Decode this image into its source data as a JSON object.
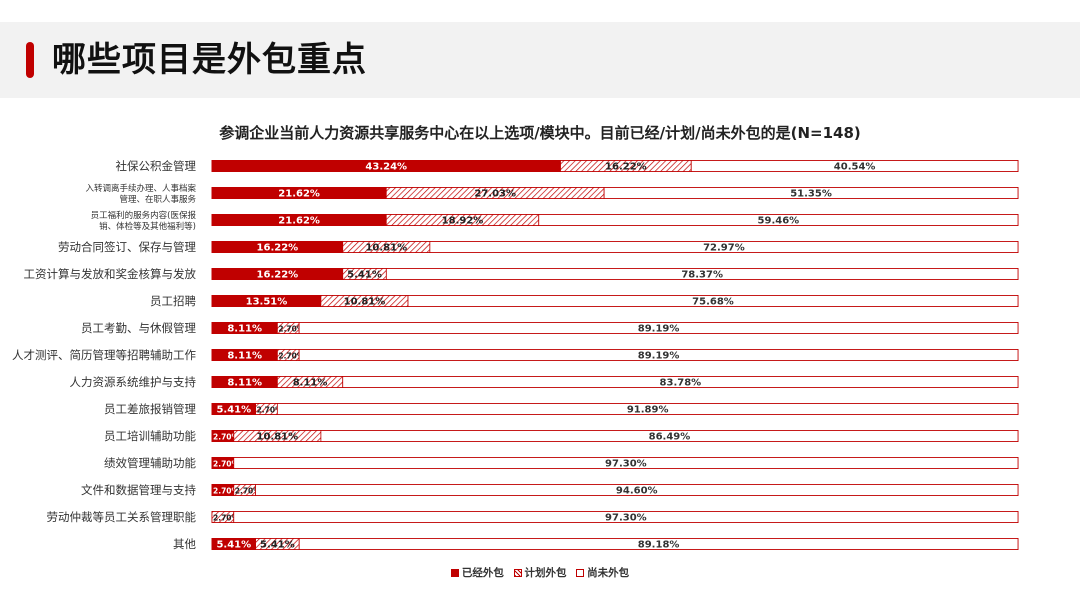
{
  "page": {
    "title": "哪些项目是外包重点"
  },
  "chart_data": {
    "type": "bar",
    "orientation": "horizontal",
    "stacked": true,
    "normalized_percent": true,
    "title": "参调企业当前人力资源共享服务中心在以上选项/模块中。目前已经/计划/尚未外包的是(N=148)",
    "xlim": [
      0,
      100
    ],
    "categories": [
      "社保公积金管理",
      "入转调离手续办理、人事档案\n管理、在职人事服务",
      "员工福利的服务内容(医保报\n销、体检等及其他福利等)",
      "劳动合同签订、保存与管理",
      "工资计算与发放和奖金核算与发放",
      "员工招聘",
      "员工考勤、与休假管理",
      "人才测评、简历管理等招聘辅助工作",
      "人力资源系统维护与支持",
      "员工差旅报销管理",
      "员工培训辅助功能",
      "绩效管理辅助功能",
      "文件和数据管理与支持",
      "劳动仲裁等员工关系管理职能",
      "其他"
    ],
    "series": [
      {
        "name": "已经外包",
        "colors": {
          "fill": "#c00000"
        },
        "values": [
          43.24,
          21.62,
          21.62,
          16.22,
          16.22,
          13.51,
          8.11,
          8.11,
          8.11,
          5.41,
          2.7,
          2.7,
          2.7,
          0.0,
          5.41
        ],
        "labels": [
          "43.24%",
          "21.62%",
          "21.62%",
          "16.22%",
          "16.22%",
          "13.51%",
          "8.11%",
          "8.11%",
          "8.11%",
          "5.41%",
          "2.70%",
          "2.70%",
          "2.70%",
          "",
          "5.41%"
        ]
      },
      {
        "name": "计划外包",
        "colors": {
          "fill": "hatch"
        },
        "values": [
          16.22,
          27.03,
          18.92,
          10.81,
          5.41,
          10.81,
          2.7,
          2.7,
          8.11,
          2.7,
          10.81,
          0.0,
          2.7,
          2.7,
          5.41
        ],
        "labels": [
          "16.22%",
          "27.03%",
          "18.92%",
          "10.81%",
          "5.41%",
          "10.81%",
          "2.70%",
          "2.70%",
          "8.11%",
          "2.70%",
          "10.81%",
          "",
          "2.70%",
          "2.70%",
          "5.41%"
        ]
      },
      {
        "name": "尚未外包",
        "colors": {
          "fill": "#ffffff"
        },
        "values": [
          40.54,
          51.35,
          59.46,
          72.97,
          78.37,
          75.68,
          89.19,
          89.19,
          83.78,
          91.89,
          86.49,
          97.3,
          94.6,
          97.3,
          89.18
        ],
        "labels": [
          "40.54%",
          "51.35%",
          "59.46%",
          "72.97%",
          "78.37%",
          "75.68%",
          "89.19%",
          "89.19%",
          "83.78%",
          "91.89%",
          "86.49%",
          "97.30%",
          "94.60%",
          "97.30%",
          "89.18%"
        ]
      }
    ],
    "legend": {
      "position": "bottom-center",
      "items": [
        "已经外包",
        "计划外包",
        "尚未外包"
      ]
    },
    "colors": {
      "accent": "#c00000",
      "outline": "#c00000"
    }
  }
}
